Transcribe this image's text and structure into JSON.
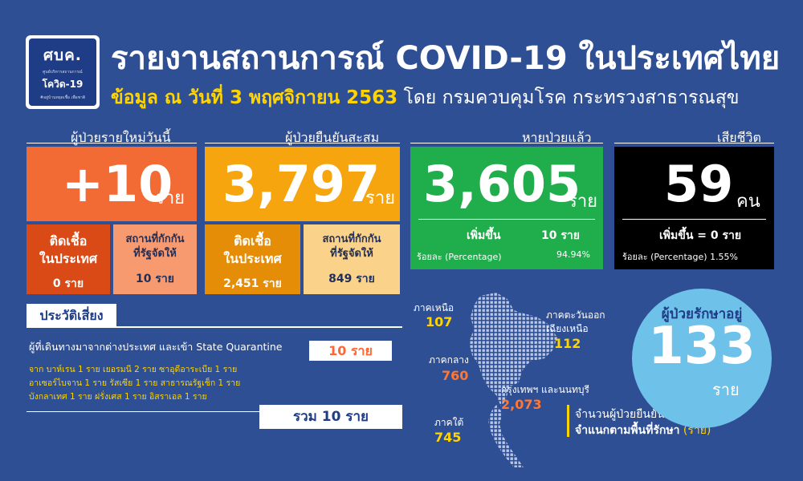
{
  "header": {
    "logo_big": "ศบค.",
    "logo_small_top": "ศูนย์บริหารสถานการณ์",
    "logo_mid": "โควิด-19",
    "logo_small_bottom": "#อยู่บ้านหยุดเชื้อ เพื่อชาติ",
    "title": "รายงานสถานการณ์ COVID-19 ในประเทศไทย",
    "subtitle_highlight": "ข้อมูล ณ วันที่ 3 พฤศจิกายน 2563",
    "subtitle_rest": "โดย กรมควบคุมโรค กระทรวงสาธารณสุข"
  },
  "new_cases": {
    "caption": "ผู้ป่วยรายใหม่วันนี้",
    "value": "+10",
    "unit": "ราย",
    "local_label_1": "ติดเชื้อ",
    "local_label_2": "ในประเทศ",
    "local_value": "0 ราย",
    "quarantine_label_1": "สถานที่กักกัน",
    "quarantine_label_2": "ที่รัฐจัดให้",
    "quarantine_value": "10 ราย"
  },
  "cumulative": {
    "caption": "ผู้ป่วยยืนยันสะสม",
    "value": "3,797",
    "unit": "ราย",
    "local_label_1": "ติดเชื้อ",
    "local_label_2": "ในประเทศ",
    "local_value": "2,451 ราย",
    "quarantine_label_1": "สถานที่กักกัน",
    "quarantine_label_2": "ที่รัฐจัดให้",
    "quarantine_value": "849 ราย"
  },
  "recovered": {
    "caption": "หายป่วยแล้ว",
    "value": "3,605",
    "unit": "ราย",
    "increase_label": "เพิ่มขึ้น",
    "increase_value": "10 ราย",
    "pct_label": "ร้อยละ (Percentage)",
    "pct_value": "94.94%"
  },
  "deaths": {
    "caption": "เสียชีวิต",
    "value": "59",
    "unit": "คน",
    "increase_text": "เพิ่มขึ้น = 0 ราย",
    "pct_text": "ร้อยละ (Percentage) 1.55%"
  },
  "risk": {
    "header": "ประวัติเสี่ยง",
    "description": "ผู้ที่เดินทางมาจากต่างประเทศ และเข้า State Quarantine",
    "count": "10 ราย",
    "detail_lines": [
      "จาก บาห์เรน 1 ราย เยอรมนี 2 ราย ซาอุดีอาระเบีย 1 ราย",
      "อาเซอร์ไบจาน 1 ราย รัสเซีย 1 ราย สาธารณรัฐเช็ก 1 ราย",
      "บังกลาเทศ 1 ราย ฝรั่งเศส 1 ราย อิสราเอล 1 ราย"
    ],
    "total": "รวม 10 ราย"
  },
  "regions": {
    "north_label": "ภาคเหนือ",
    "north_value": "107",
    "northeast_label_1": "ภาคตะวันออก",
    "northeast_label_2": "เฉียงเหนือ",
    "northeast_value": "112",
    "central_label": "ภาคกลาง",
    "central_value": "760",
    "bangkok_label": "กรุงเทพฯ และนนทบุรี",
    "bangkok_value": "2,073",
    "south_label": "ภาคใต้",
    "south_value": "745"
  },
  "in_treatment": {
    "caption": "ผู้ป่วยรักษาอยู่",
    "value": "133",
    "unit": "ราย"
  },
  "map_caption": {
    "line1": "จำนวนผู้ป่วยยืนยัน",
    "line2_bold": "จำแนกตามพื้นที่รักษา",
    "line2_rest": "(ราย)"
  },
  "colors": {
    "background": "#2f4f95",
    "new_cases": "#f26b34",
    "new_local": "#d94a16",
    "new_quarantine": "#f89a6f",
    "cumulative": "#f7a50f",
    "cumulative_local": "#e58d06",
    "cumulative_quarantine": "#fbd28a",
    "recovered": "#1fae4b",
    "deaths": "#000000",
    "in_treatment": "#6ec2ea",
    "highlight": "#ffd400"
  }
}
